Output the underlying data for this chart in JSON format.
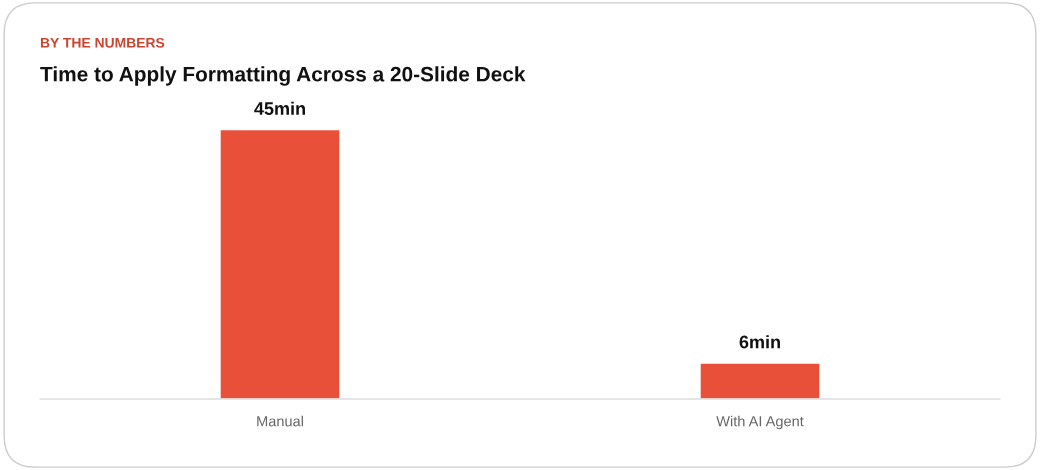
{
  "chart_data": {
    "type": "bar",
    "subtitle": "BY THE NUMBERS",
    "title": "Time to Apply Formatting Across a 20-Slide Deck",
    "categories": [
      "Manual",
      "With AI Agent"
    ],
    "values": [
      45,
      6
    ],
    "value_labels": [
      "45min",
      "6min"
    ],
    "color": "#e9503a",
    "tick_labels": "x",
    "grid": false,
    "legend": false
  }
}
